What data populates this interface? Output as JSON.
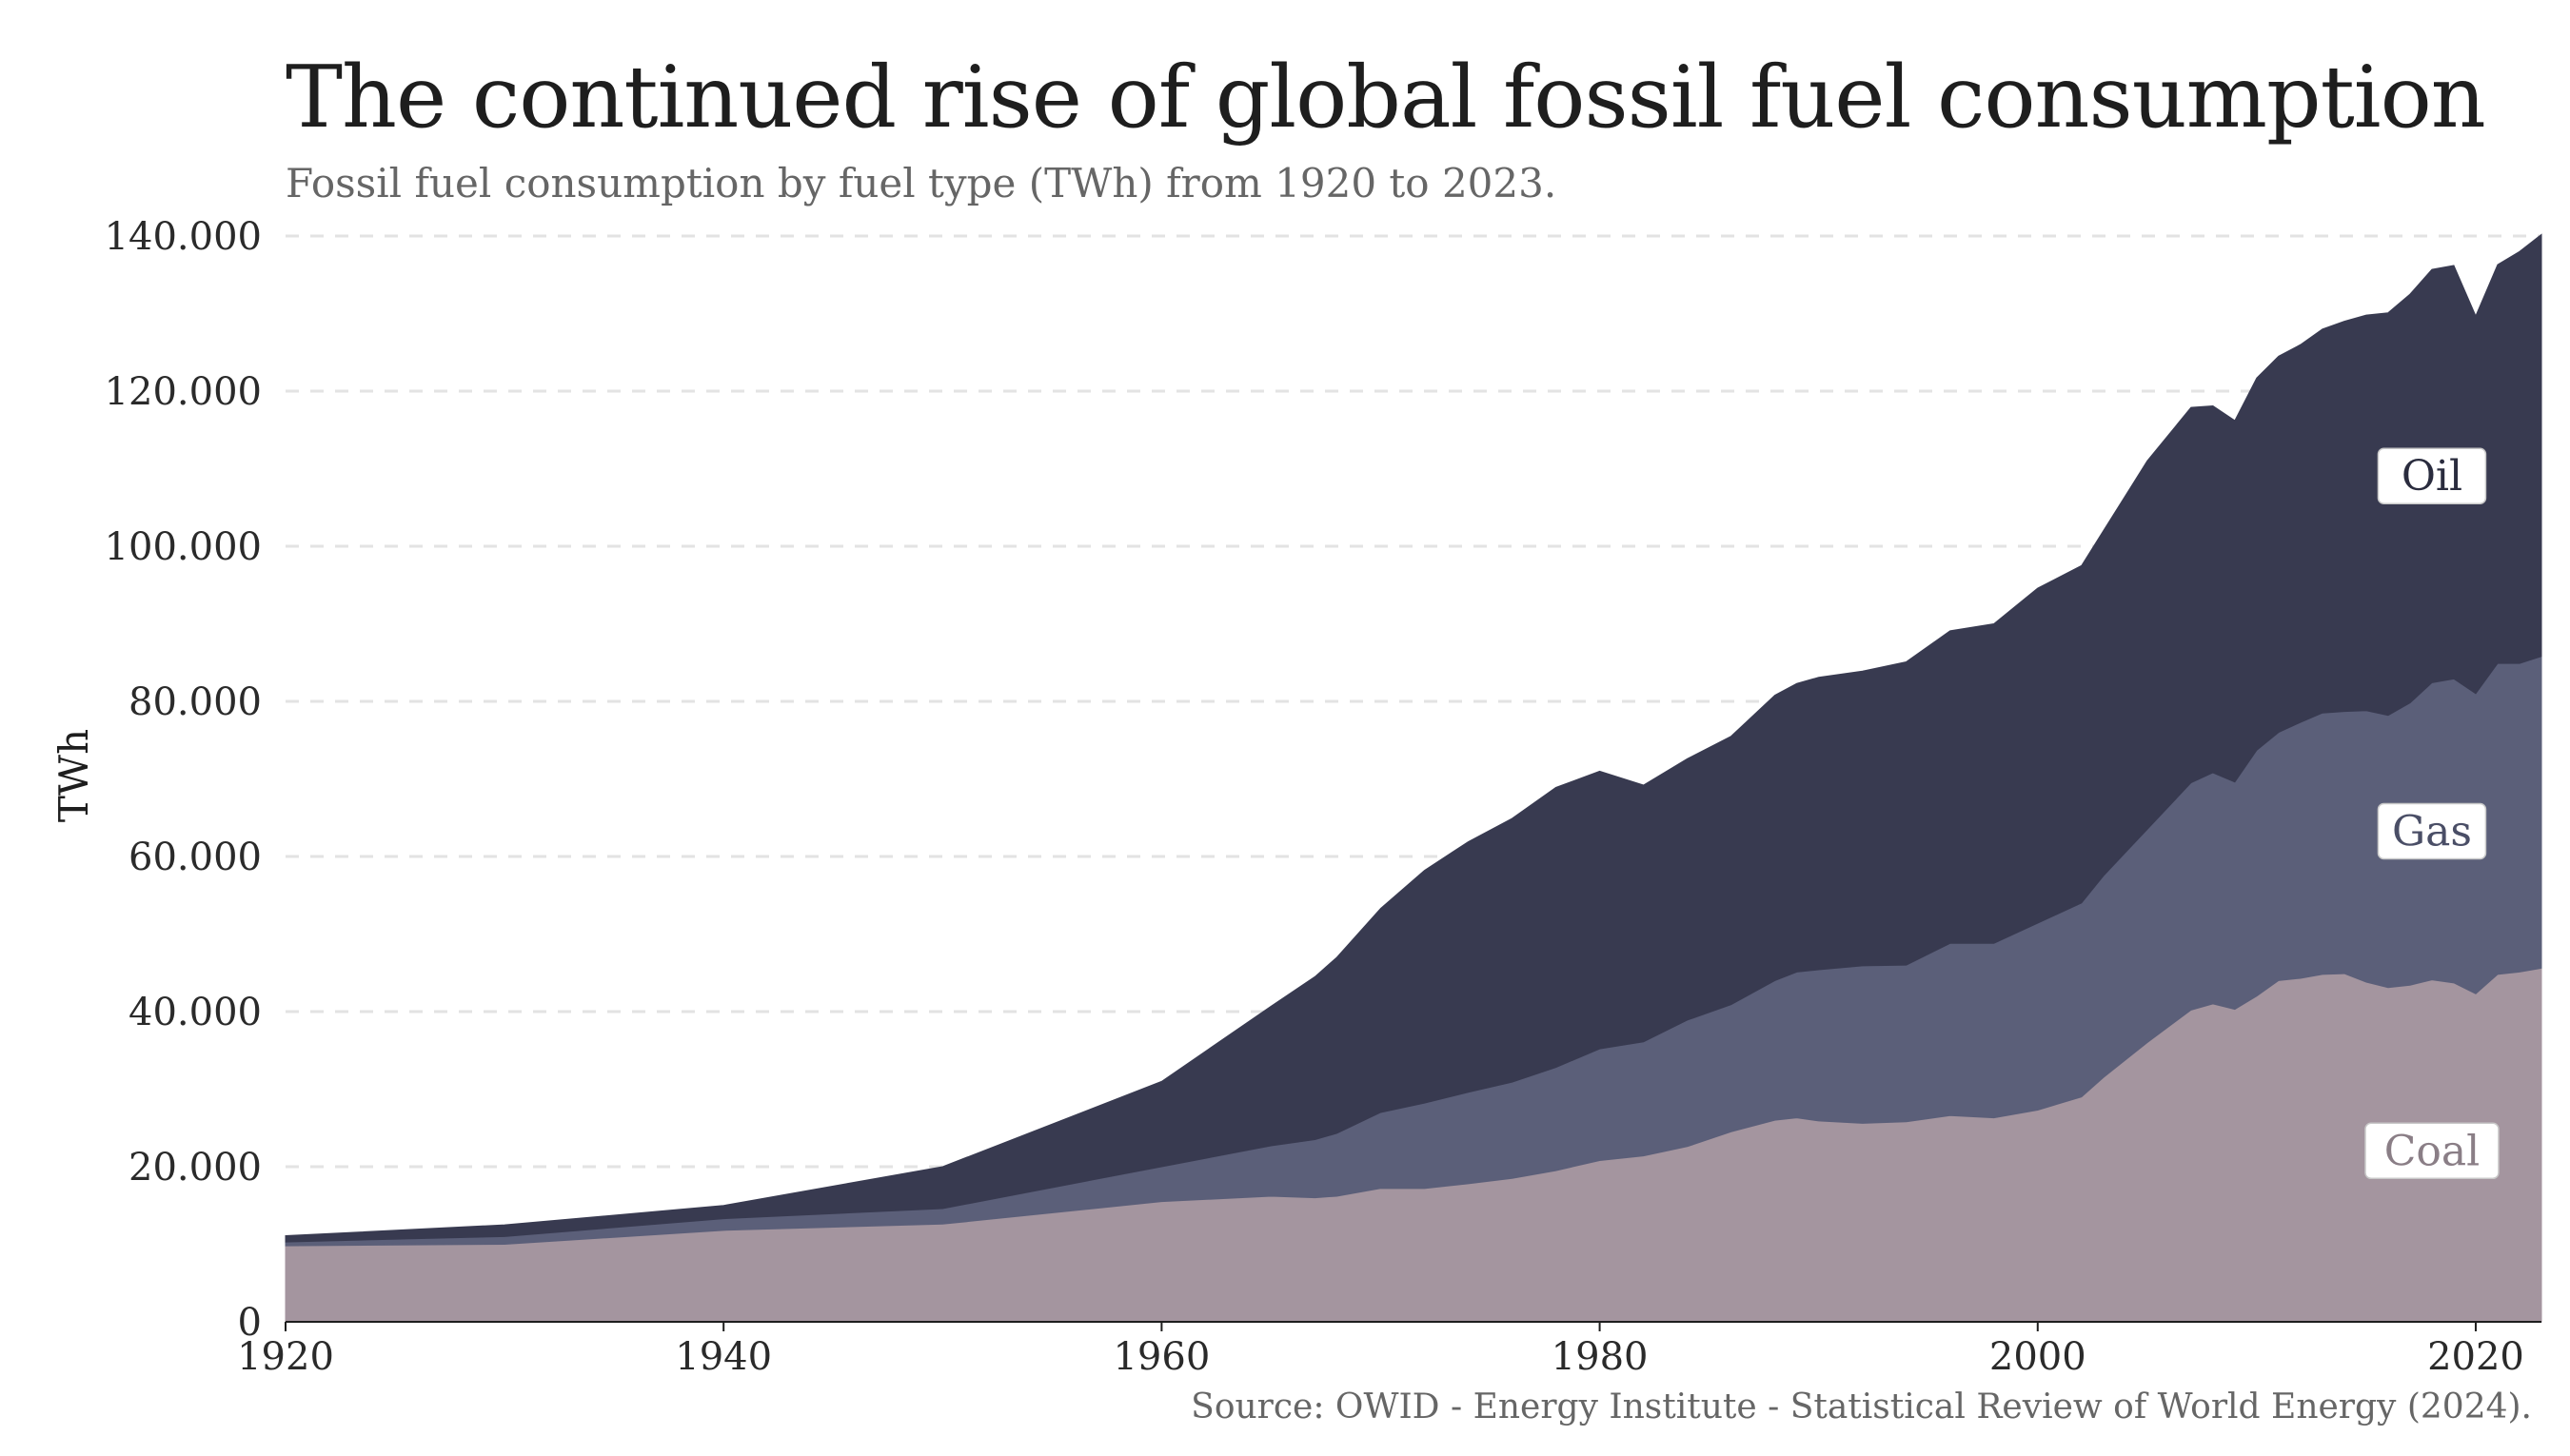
{
  "title": "The continued rise of global fossil fuel consumption",
  "subtitle": "Fossil fuel consumption by fuel type (TWh) from 1920 to 2023.",
  "source": "Source: OWID - Energy Institute - Statistical Review of World Energy (2024).",
  "chart_data": {
    "type": "area",
    "stacked": true,
    "ylabel": "TWh",
    "xlim": [
      1920,
      2023
    ],
    "ylim": [
      0,
      140000
    ],
    "x_ticks": [
      "1920",
      "1940",
      "1960",
      "1980",
      "2000",
      "2020"
    ],
    "y_ticks": [
      "0",
      "20.000",
      "40.000",
      "60.000",
      "80.000",
      "100.000",
      "120.000",
      "140.000"
    ],
    "grid": "horizontal-dashed",
    "colors": {
      "Coal": "#a4959f",
      "Gas": "#5b5f79",
      "Oil": "#383a50"
    },
    "label_colors": {
      "Coal": "#8a7e86",
      "Gas": "#4a4e66",
      "Oil": "#2a2c3e"
    },
    "series": [
      {
        "name": "Coal",
        "points": [
          [
            1920,
            9800
          ],
          [
            1930,
            10000
          ],
          [
            1940,
            11800
          ],
          [
            1950,
            12600
          ],
          [
            1960,
            15500
          ],
          [
            1965,
            16200
          ],
          [
            1967,
            16000
          ],
          [
            1968,
            16200
          ],
          [
            1970,
            17200
          ],
          [
            1972,
            17200
          ],
          [
            1974,
            17800
          ],
          [
            1976,
            18500
          ],
          [
            1978,
            19500
          ],
          [
            1980,
            20800
          ],
          [
            1982,
            21400
          ],
          [
            1984,
            22600
          ],
          [
            1986,
            24500
          ],
          [
            1988,
            26000
          ],
          [
            1989,
            26300
          ],
          [
            1990,
            25900
          ],
          [
            1992,
            25600
          ],
          [
            1994,
            25800
          ],
          [
            1996,
            26600
          ],
          [
            1998,
            26300
          ],
          [
            2000,
            27300
          ],
          [
            2002,
            29000
          ],
          [
            2003,
            31500
          ],
          [
            2005,
            36000
          ],
          [
            2007,
            40200
          ],
          [
            2008,
            41000
          ],
          [
            2009,
            40300
          ],
          [
            2010,
            42000
          ],
          [
            2011,
            44000
          ],
          [
            2012,
            44300
          ],
          [
            2013,
            44800
          ],
          [
            2014,
            44900
          ],
          [
            2015,
            43800
          ],
          [
            2016,
            43100
          ],
          [
            2017,
            43400
          ],
          [
            2018,
            44100
          ],
          [
            2019,
            43700
          ],
          [
            2020,
            42300
          ],
          [
            2021,
            44800
          ],
          [
            2022,
            45100
          ],
          [
            2023,
            45600
          ]
        ]
      },
      {
        "name": "Gas",
        "points": [
          [
            1920,
            500
          ],
          [
            1930,
            1000
          ],
          [
            1940,
            1500
          ],
          [
            1950,
            2000
          ],
          [
            1960,
            4500
          ],
          [
            1965,
            6500
          ],
          [
            1967,
            7500
          ],
          [
            1968,
            8100
          ],
          [
            1970,
            9800
          ],
          [
            1972,
            11000
          ],
          [
            1974,
            11800
          ],
          [
            1976,
            12400
          ],
          [
            1978,
            13300
          ],
          [
            1980,
            14400
          ],
          [
            1982,
            14700
          ],
          [
            1984,
            16300
          ],
          [
            1986,
            16400
          ],
          [
            1988,
            18000
          ],
          [
            1989,
            18800
          ],
          [
            1990,
            19500
          ],
          [
            1992,
            20300
          ],
          [
            1994,
            20200
          ],
          [
            1996,
            22200
          ],
          [
            1998,
            22500
          ],
          [
            2000,
            24100
          ],
          [
            2002,
            25000
          ],
          [
            2003,
            26000
          ],
          [
            2005,
            27500
          ],
          [
            2007,
            29300
          ],
          [
            2008,
            29800
          ],
          [
            2009,
            29300
          ],
          [
            2010,
            31700
          ],
          [
            2011,
            32000
          ],
          [
            2012,
            33000
          ],
          [
            2013,
            33700
          ],
          [
            2014,
            33800
          ],
          [
            2015,
            35000
          ],
          [
            2016,
            35100
          ],
          [
            2017,
            36400
          ],
          [
            2018,
            38300
          ],
          [
            2019,
            39200
          ],
          [
            2020,
            38700
          ],
          [
            2021,
            40100
          ],
          [
            2022,
            39800
          ],
          [
            2023,
            40200
          ]
        ]
      },
      {
        "name": "Oil",
        "points": [
          [
            1920,
            800
          ],
          [
            1930,
            1500
          ],
          [
            1940,
            1700
          ],
          [
            1950,
            5400
          ],
          [
            1960,
            11000
          ],
          [
            1965,
            18000
          ],
          [
            1967,
            21000
          ],
          [
            1968,
            22700
          ],
          [
            1970,
            26300
          ],
          [
            1972,
            30000
          ],
          [
            1974,
            32300
          ],
          [
            1976,
            34000
          ],
          [
            1978,
            36100
          ],
          [
            1980,
            35800
          ],
          [
            1982,
            33100
          ],
          [
            1984,
            33700
          ],
          [
            1986,
            34600
          ],
          [
            1988,
            36800
          ],
          [
            1989,
            37200
          ],
          [
            1990,
            37700
          ],
          [
            1992,
            38000
          ],
          [
            1994,
            39100
          ],
          [
            1996,
            40300
          ],
          [
            1998,
            41200
          ],
          [
            2000,
            43200
          ],
          [
            2002,
            43500
          ],
          [
            2003,
            44500
          ],
          [
            2005,
            47500
          ],
          [
            2007,
            48400
          ],
          [
            2008,
            47300
          ],
          [
            2009,
            46600
          ],
          [
            2010,
            48000
          ],
          [
            2011,
            48500
          ],
          [
            2012,
            48700
          ],
          [
            2013,
            49500
          ],
          [
            2014,
            50300
          ],
          [
            2015,
            51000
          ],
          [
            2016,
            51900
          ],
          [
            2017,
            52700
          ],
          [
            2018,
            53300
          ],
          [
            2019,
            53300
          ],
          [
            2020,
            48700
          ],
          [
            2021,
            51400
          ],
          [
            2022,
            53100
          ],
          [
            2023,
            54400
          ]
        ]
      }
    ]
  }
}
